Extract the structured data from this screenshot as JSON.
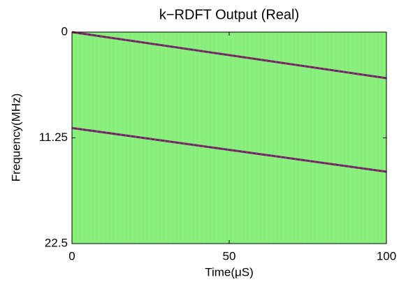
{
  "chart_data": {
    "type": "spectrogram",
    "title": "k−RDFT Output (Real)",
    "x_label": "Time(μS)",
    "y_label": "Frequency(MHz)",
    "xlim": [
      0,
      100
    ],
    "xticks": [
      0,
      50,
      100
    ],
    "ylim": [
      0,
      22.5
    ],
    "yticks": [
      0,
      11.25,
      22.5
    ],
    "y_inverted": true,
    "background_color": "#88f07a",
    "x": [
      0,
      100
    ],
    "series": [
      {
        "color": "#5a2a78",
        "values": [
          0,
          4.9
        ]
      },
      {
        "color": "#5a2a78",
        "values": [
          10.2,
          14.85
        ]
      }
    ]
  }
}
